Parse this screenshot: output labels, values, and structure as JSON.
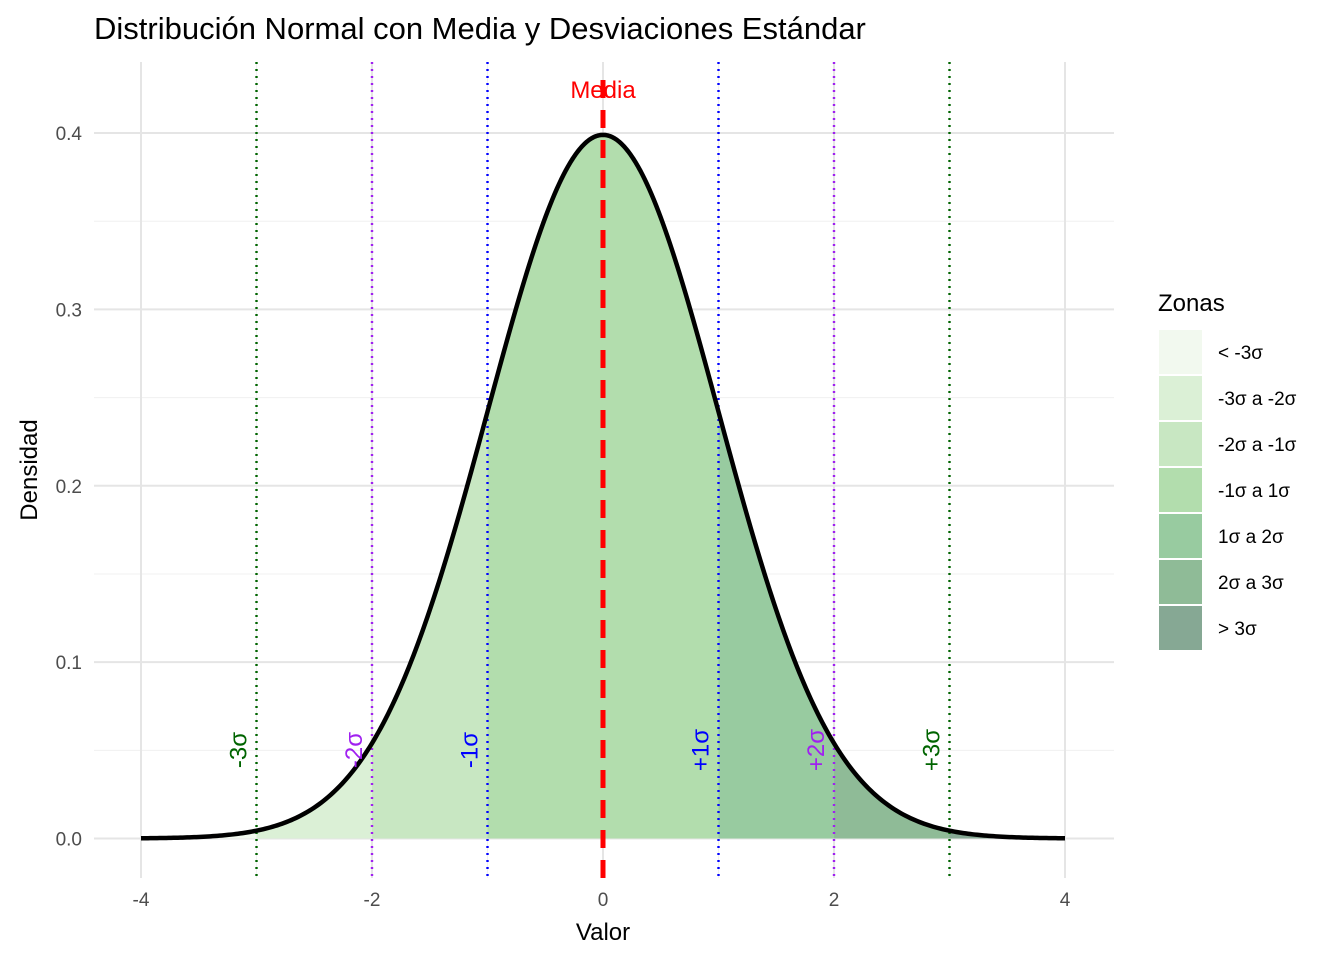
{
  "chart_data": {
    "type": "area",
    "title": "Distribución Normal con Media y Desviaciones Estándar",
    "xlabel": "Valor",
    "ylabel": "Densidad",
    "xlim": [
      -4,
      4
    ],
    "ylim": [
      0,
      0.4
    ],
    "grid": true,
    "x_ticks": [
      -4,
      -2,
      0,
      2,
      4
    ],
    "x_tick_labels": [
      "-4",
      "-2",
      "0",
      "2",
      "4"
    ],
    "y_ticks": [
      0.0,
      0.1,
      0.2,
      0.3,
      0.4
    ],
    "y_tick_labels": [
      "0.0",
      "0.1",
      "0.2",
      "0.3",
      "0.4"
    ],
    "distribution": {
      "name": "normal",
      "mean": 0,
      "sd": 1
    },
    "curve_color": "#000000",
    "legend": {
      "title": "Zonas",
      "position": "right",
      "items": [
        {
          "label": "< -3σ",
          "color": "#f2f9ef",
          "from": -4,
          "to": -3
        },
        {
          "label": "-3σ a -2σ",
          "color": "#dbf0d6",
          "from": -3,
          "to": -2
        },
        {
          "label": "-2σ a -1σ",
          "color": "#c8e7c2",
          "from": -2,
          "to": -1
        },
        {
          "label": "-1σ a 1σ",
          "color": "#b2ddad",
          "from": -1,
          "to": 1
        },
        {
          "label": "1σ a 2σ",
          "color": "#98cba0",
          "from": 1,
          "to": 2
        },
        {
          "label": "2σ a 3σ",
          "color": "#8fbb97",
          "from": 2,
          "to": 3
        },
        {
          "label": "> 3σ",
          "color": "#86a894",
          "from": 3,
          "to": 4
        }
      ]
    },
    "mean_line": {
      "x": 0,
      "label": "Media",
      "color": "#ff0000"
    },
    "sd_lines": [
      {
        "x": -3,
        "label": "-3σ",
        "color": "#006400"
      },
      {
        "x": -2,
        "label": "-2σ",
        "color": "#a020f0"
      },
      {
        "x": -1,
        "label": "-1σ",
        "color": "#0000ff"
      },
      {
        "x": 1,
        "label": "+1σ",
        "color": "#0000ff"
      },
      {
        "x": 2,
        "label": "+2σ",
        "color": "#a020f0"
      },
      {
        "x": 3,
        "label": "+3σ",
        "color": "#006400"
      }
    ]
  }
}
